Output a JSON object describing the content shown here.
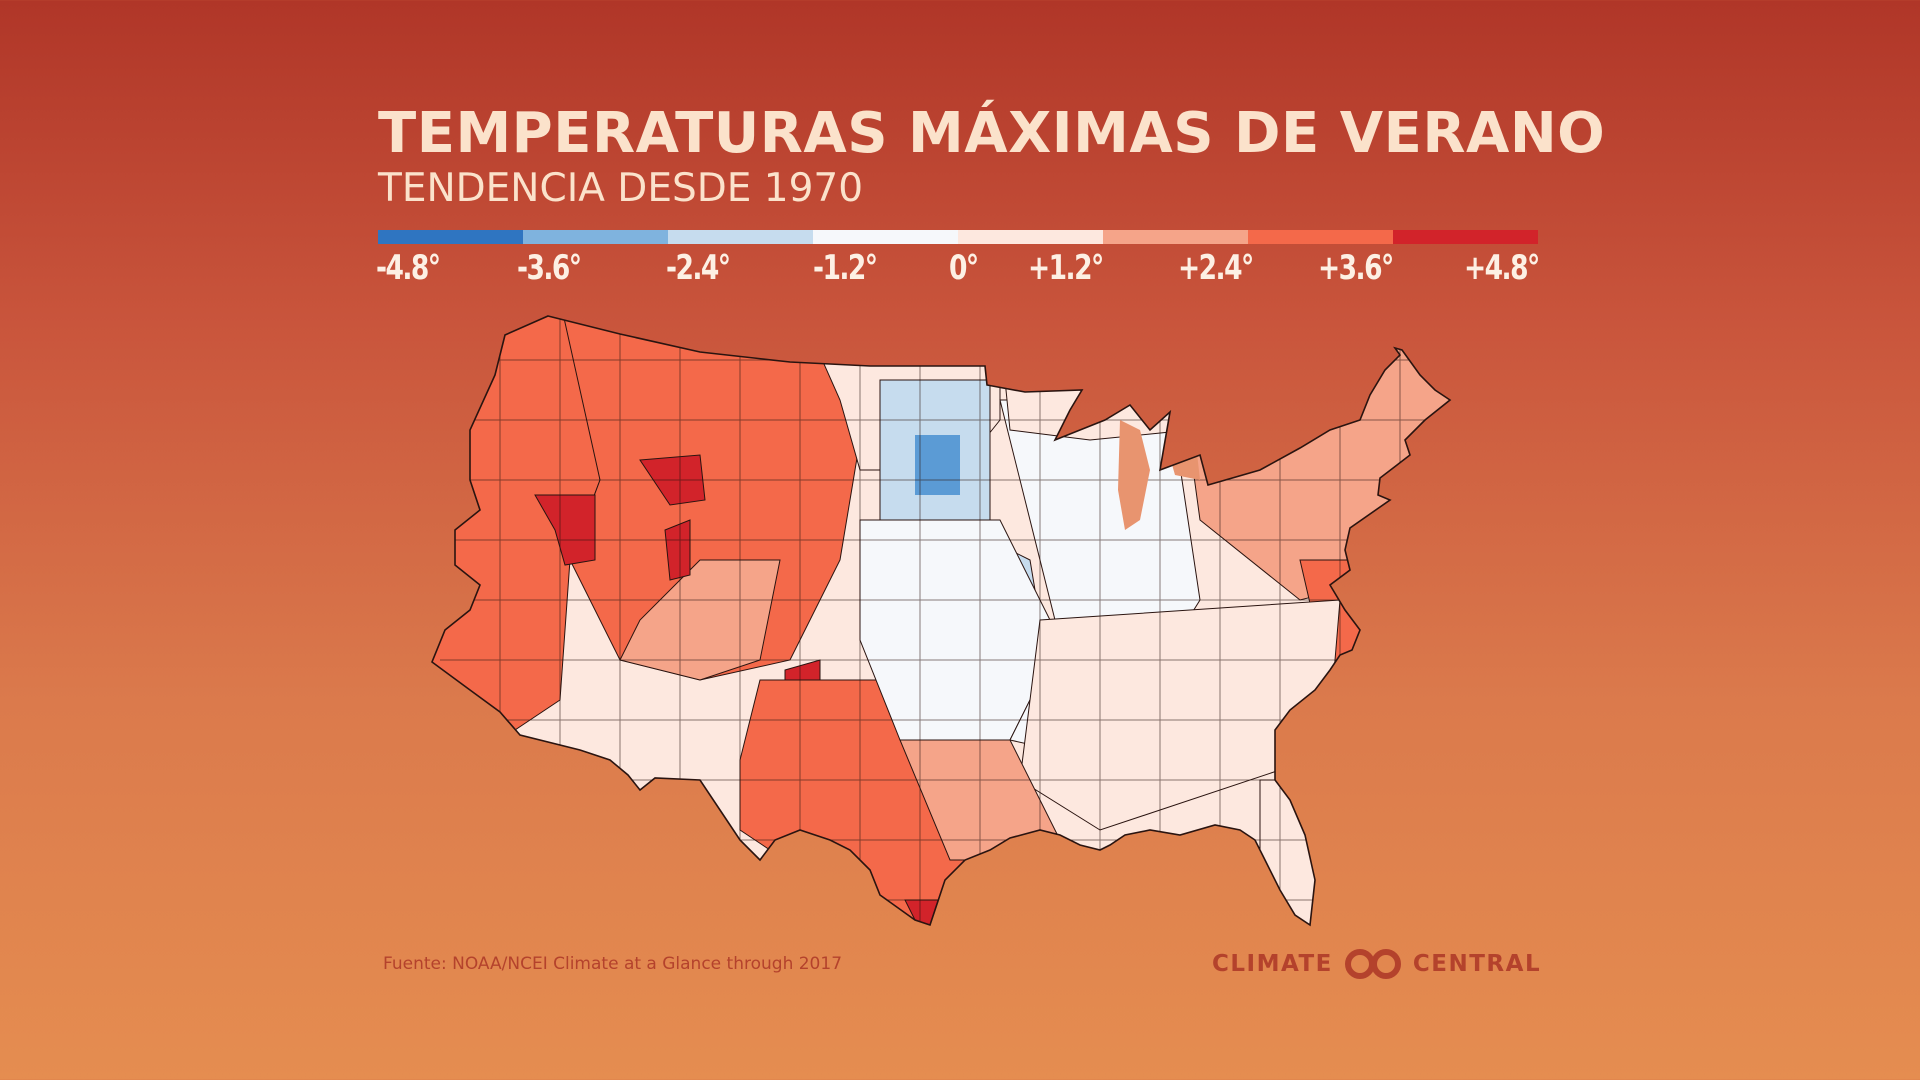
{
  "header": {
    "title": "TEMPERATURAS MÁXIMAS DE VERANO",
    "subtitle": "TENDENCIA DESDE 1970"
  },
  "legend": {
    "colors": [
      "#2f75c1",
      "#7fb3de",
      "#c6dcee",
      "#f6f8fb",
      "#fde8df",
      "#f5a489",
      "#f4694a",
      "#d2232a"
    ],
    "ticks": [
      "-4.8°",
      "-3.6°",
      "-2.4°",
      "-1.2°",
      "0°",
      "+1.2°",
      "+2.4°",
      "+3.6°",
      "+4.8°"
    ]
  },
  "map": {
    "region_trends": [
      {
        "region": "Pacific coast",
        "class": 6
      },
      {
        "region": "Nevada / Great Basin",
        "class": 7
      },
      {
        "region": "Idaho / Wyoming west",
        "class": 7
      },
      {
        "region": "Mountain West",
        "class": 6
      },
      {
        "region": "Southwest desert",
        "class": 5
      },
      {
        "region": "New Mexico east",
        "class": 7
      },
      {
        "region": "Texas west and south",
        "class": 6
      },
      {
        "region": "South Texas tip",
        "class": 7
      },
      {
        "region": "Northern Plains",
        "class": 4
      },
      {
        "region": "Eastern Dakotas",
        "class": 2
      },
      {
        "region": "Central Plains",
        "class": 3
      },
      {
        "region": "Midwest / Ohio Valley",
        "class": 3
      },
      {
        "region": "Great Lakes",
        "class": 4
      },
      {
        "region": "Northeast",
        "class": 5
      },
      {
        "region": "Mid-Atlantic coast",
        "class": 6
      },
      {
        "region": "Southeast",
        "class": 4
      },
      {
        "region": "Florida",
        "class": 4
      },
      {
        "region": "Gulf coast Texas / Louisiana",
        "class": 5
      }
    ]
  },
  "footer": {
    "source": "Fuente: NOAA/NCEI Climate at a Glance through 2017",
    "logo_left": "CLIMATE",
    "logo_right": "CENTRAL"
  },
  "accent": "#b4422c"
}
